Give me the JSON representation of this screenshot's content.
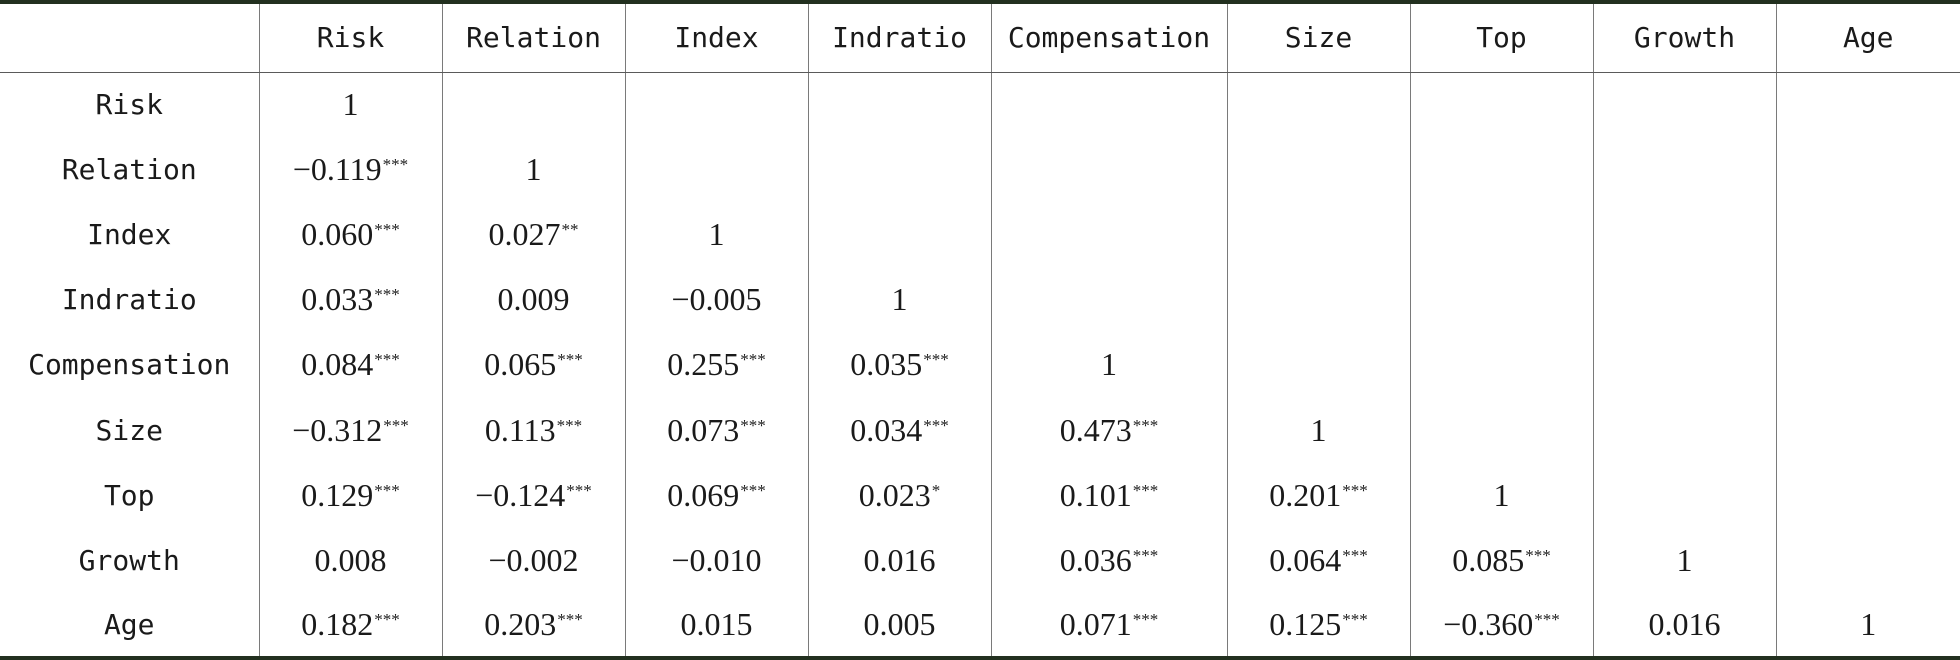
{
  "chart_data": {
    "type": "table",
    "columns": [
      "",
      "Risk",
      "Relation",
      "Index",
      "Indratio",
      "Compensation",
      "Size",
      "Top",
      "Growth",
      "Age"
    ],
    "rows": [
      {
        "label": "Risk",
        "cells": [
          {
            "v": "1",
            "s": ""
          }
        ]
      },
      {
        "label": "Relation",
        "cells": [
          {
            "v": "−0.119",
            "s": "***"
          },
          {
            "v": "1",
            "s": ""
          }
        ]
      },
      {
        "label": "Index",
        "cells": [
          {
            "v": "0.060",
            "s": "***"
          },
          {
            "v": "0.027",
            "s": "**"
          },
          {
            "v": "1",
            "s": ""
          }
        ]
      },
      {
        "label": "Indratio",
        "cells": [
          {
            "v": "0.033",
            "s": "***"
          },
          {
            "v": "0.009",
            "s": ""
          },
          {
            "v": "−0.005",
            "s": ""
          },
          {
            "v": "1",
            "s": ""
          }
        ]
      },
      {
        "label": "Compensation",
        "cells": [
          {
            "v": "0.084",
            "s": "***"
          },
          {
            "v": "0.065",
            "s": "***"
          },
          {
            "v": "0.255",
            "s": "***"
          },
          {
            "v": "0.035",
            "s": "***"
          },
          {
            "v": "1",
            "s": ""
          }
        ]
      },
      {
        "label": "Size",
        "cells": [
          {
            "v": "−0.312",
            "s": "***"
          },
          {
            "v": "0.113",
            "s": "***"
          },
          {
            "v": "0.073",
            "s": "***"
          },
          {
            "v": "0.034",
            "s": "***"
          },
          {
            "v": "0.473",
            "s": "***"
          },
          {
            "v": "1",
            "s": ""
          }
        ]
      },
      {
        "label": "Top",
        "cells": [
          {
            "v": "0.129",
            "s": "***"
          },
          {
            "v": "−0.124",
            "s": "***"
          },
          {
            "v": "0.069",
            "s": "***"
          },
          {
            "v": "0.023",
            "s": "*"
          },
          {
            "v": "0.101",
            "s": "***"
          },
          {
            "v": "0.201",
            "s": "***"
          },
          {
            "v": "1",
            "s": ""
          }
        ]
      },
      {
        "label": "Growth",
        "cells": [
          {
            "v": "0.008",
            "s": ""
          },
          {
            "v": "−0.002",
            "s": ""
          },
          {
            "v": "−0.010",
            "s": ""
          },
          {
            "v": "0.016",
            "s": ""
          },
          {
            "v": "0.036",
            "s": "***"
          },
          {
            "v": "0.064",
            "s": "***"
          },
          {
            "v": "0.085",
            "s": "***"
          },
          {
            "v": "1",
            "s": ""
          }
        ]
      },
      {
        "label": "Age",
        "cells": [
          {
            "v": "0.182",
            "s": "***"
          },
          {
            "v": "0.203",
            "s": "***"
          },
          {
            "v": "0.015",
            "s": ""
          },
          {
            "v": "0.005",
            "s": ""
          },
          {
            "v": "0.071",
            "s": "***"
          },
          {
            "v": "0.125",
            "s": "***"
          },
          {
            "v": "−0.360",
            "s": "***"
          },
          {
            "v": "0.016",
            "s": ""
          },
          {
            "v": "1",
            "s": ""
          }
        ]
      }
    ]
  }
}
